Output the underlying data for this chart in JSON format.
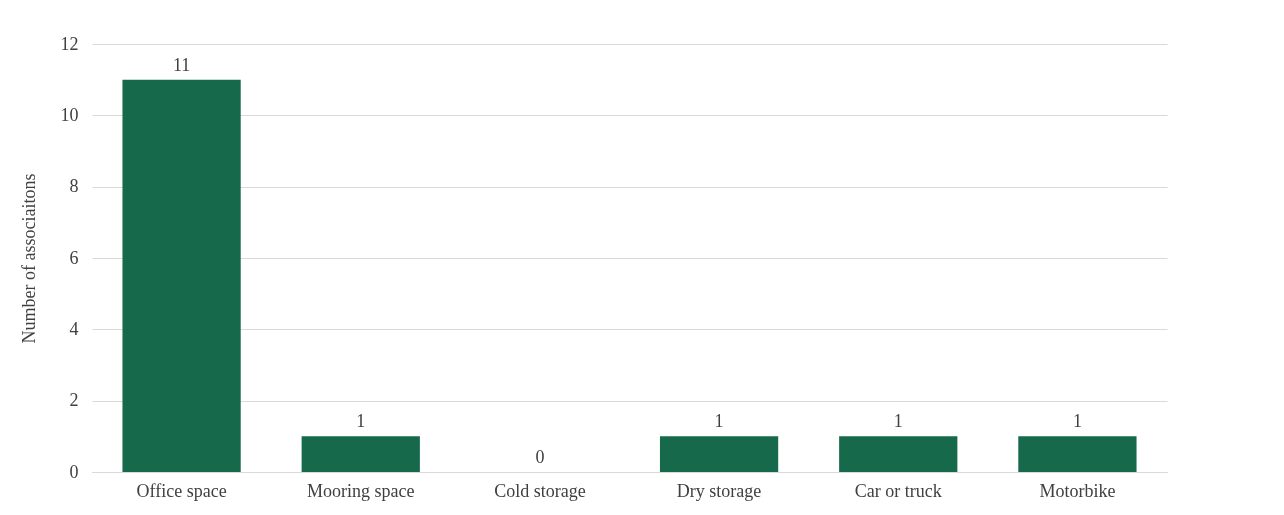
{
  "chart_data": {
    "type": "bar",
    "ylabel": "Number of associaitons",
    "categories": [
      "Office space",
      "Mooring space",
      "Cold storage",
      "Dry storage",
      "Car or truck",
      "Motorbike"
    ],
    "values": [
      11,
      1,
      0,
      1,
      1,
      1
    ],
    "color": "#17694b",
    "ylim": [
      0,
      12
    ],
    "yticks": [
      0,
      2,
      4,
      6,
      8,
      10,
      12
    ],
    "grid": "y",
    "data_labels": true
  }
}
